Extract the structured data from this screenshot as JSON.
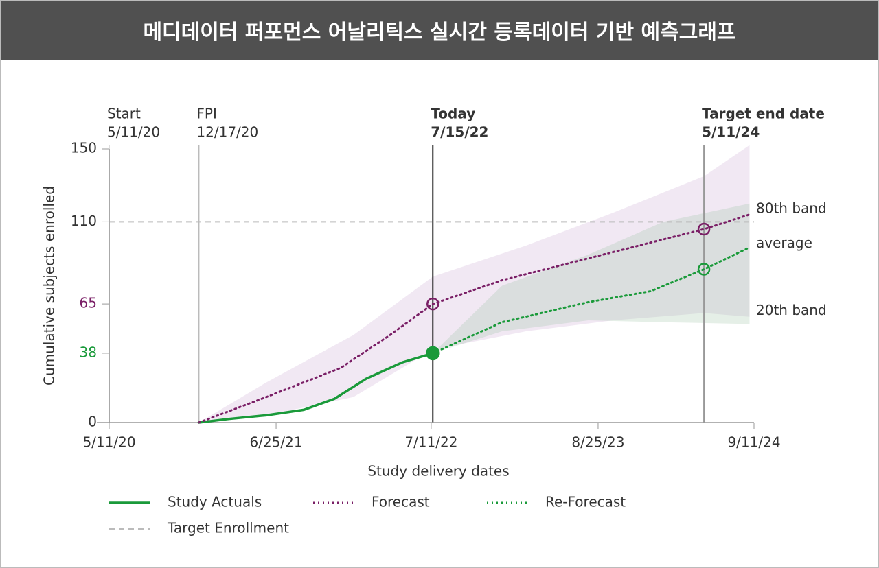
{
  "header": {
    "title": "메디데이터 퍼포먼스 어날리틱스 실시간 등록데이터 기반 예측그래프"
  },
  "chart_data": {
    "type": "line",
    "x_label": "Study delivery dates",
    "y_label": "Cumulative subjects enrolled",
    "xlim": [
      "2020-05-11",
      "2024-09-11"
    ],
    "xticks": [
      {
        "value": "2020-05-11",
        "label": "5/11/20"
      },
      {
        "value": "2021-06-25",
        "label": "6/25/21"
      },
      {
        "value": "2022-07-11",
        "label": "7/11/22"
      },
      {
        "value": "2023-08-25",
        "label": "8/25/23"
      },
      {
        "value": "2024-09-11",
        "label": "9/11/24"
      }
    ],
    "ylim": [
      0,
      150
    ],
    "yticks": [
      0,
      38,
      65,
      110,
      150
    ],
    "ytick_colors": [
      "#333333",
      "#1a9a3a",
      "#7a1f66",
      "#333333",
      "#333333"
    ],
    "events": [
      {
        "title": "Start",
        "value": "2020-05-11",
        "label": "5/11/20",
        "color": "#dddddd",
        "bold": false
      },
      {
        "title": "FPI",
        "value": "2020-12-17",
        "label": "12/17/20",
        "color": "#bbbbbb",
        "bold": false
      },
      {
        "title": "Today",
        "value": "2022-07-15",
        "label": "7/15/22",
        "color": "#222222",
        "bold": true
      },
      {
        "title": "Target end date",
        "value": "2024-05-11",
        "label": "5/11/24",
        "color": "#999999",
        "bold": true
      }
    ],
    "bands": [
      {
        "color": "rgba(190,150,200,0.22)",
        "x": [
          "2020-12-17",
          "2021-06-01",
          "2022-01-01",
          "2022-07-15",
          "2023-03-01",
          "2023-10-01",
          "2024-05-11",
          "2024-08-31"
        ],
        "upper": [
          0,
          22,
          48,
          80,
          97,
          115,
          135,
          152
        ],
        "lower": [
          0,
          4,
          14,
          40,
          50,
          56,
          60,
          58
        ]
      },
      {
        "color": "rgba(150,190,160,0.25)",
        "x": [
          "2022-07-15",
          "2023-01-01",
          "2023-08-01",
          "2024-02-01",
          "2024-08-31"
        ],
        "upper": [
          38,
          75,
          92,
          110,
          120
        ],
        "lower": [
          38,
          50,
          56,
          55,
          54
        ]
      }
    ],
    "band_labels": [
      {
        "text": "80th band",
        "value": 117
      },
      {
        "text": "average",
        "value": 98
      },
      {
        "text": "20th band",
        "value": 61
      }
    ],
    "target": {
      "name": "Target Enrollment",
      "value": 110,
      "color": "#bbbbbb"
    },
    "series": [
      {
        "name": "Study Actuals",
        "color": "#1a9a3a",
        "style": "solid",
        "x": [
          "2020-12-17",
          "2021-03-01",
          "2021-06-01",
          "2021-09-01",
          "2021-11-15",
          "2022-02-01",
          "2022-05-01",
          "2022-07-15"
        ],
        "values": [
          0,
          2,
          4,
          7,
          13,
          24,
          33,
          38
        ]
      },
      {
        "name": "Forecast",
        "color": "#7a1f66",
        "style": "dotted",
        "x": [
          "2020-12-17",
          "2021-06-01",
          "2021-12-01",
          "2022-04-01",
          "2022-07-15",
          "2023-01-01",
          "2023-08-01",
          "2024-05-11",
          "2024-08-31"
        ],
        "values": [
          0,
          14,
          30,
          48,
          65,
          78,
          90,
          106,
          114
        ]
      },
      {
        "name": "Re-Forecast",
        "color": "#1a9a3a",
        "style": "dotted",
        "x": [
          "2022-07-15",
          "2023-01-01",
          "2023-08-01",
          "2024-01-01",
          "2024-05-11",
          "2024-08-31"
        ],
        "values": [
          38,
          55,
          66,
          72,
          84,
          96
        ]
      }
    ]
  }
}
